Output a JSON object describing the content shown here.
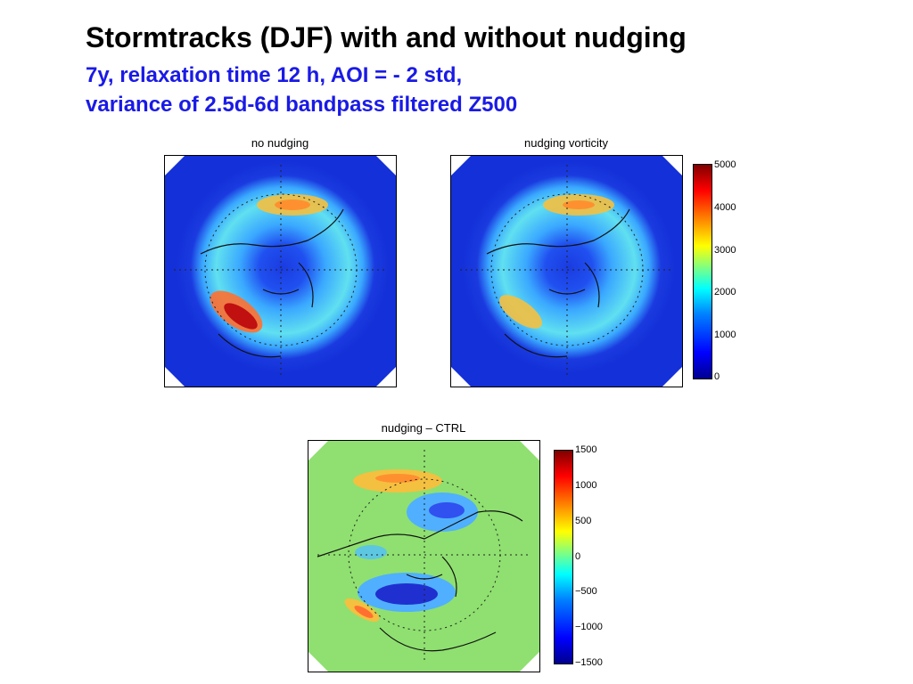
{
  "title": "Stormtracks (DJF) with and without nudging",
  "subtitle_line1": "7y, relaxation time 12 h, AOI = - 2 std,",
  "subtitle_line2": "variance of 2.5d-6d bandpass filtered Z500",
  "panels": [
    {
      "title": "no nudging",
      "field": "variance"
    },
    {
      "title": "nudging vorticity",
      "field": "variance"
    },
    {
      "title": "nudging – CTRL",
      "field": "difference"
    }
  ],
  "colorbar_variance": {
    "ticks": [
      "5000",
      "4000",
      "3000",
      "2000",
      "1000",
      "0"
    ],
    "range": [
      0,
      5000
    ],
    "colors": [
      "#00008f",
      "#0000ff",
      "#0080ff",
      "#00ffff",
      "#80ff80",
      "#ffff00",
      "#ff8000",
      "#ff0000",
      "#800000"
    ]
  },
  "colorbar_difference": {
    "ticks": [
      "1500",
      "1000",
      "500",
      "0",
      "−500",
      "−1000",
      "−1500"
    ],
    "range": [
      -1500,
      1500
    ],
    "colors": [
      "#00008f",
      "#0000ff",
      "#0080ff",
      "#00ffff",
      "#80ff80",
      "#ffff00",
      "#ff8000",
      "#ff0000",
      "#800000"
    ]
  },
  "colors": {
    "title_blue": "#1a1ae6",
    "background_variance": "#1a3be0",
    "background_difference": "#8fe070"
  }
}
